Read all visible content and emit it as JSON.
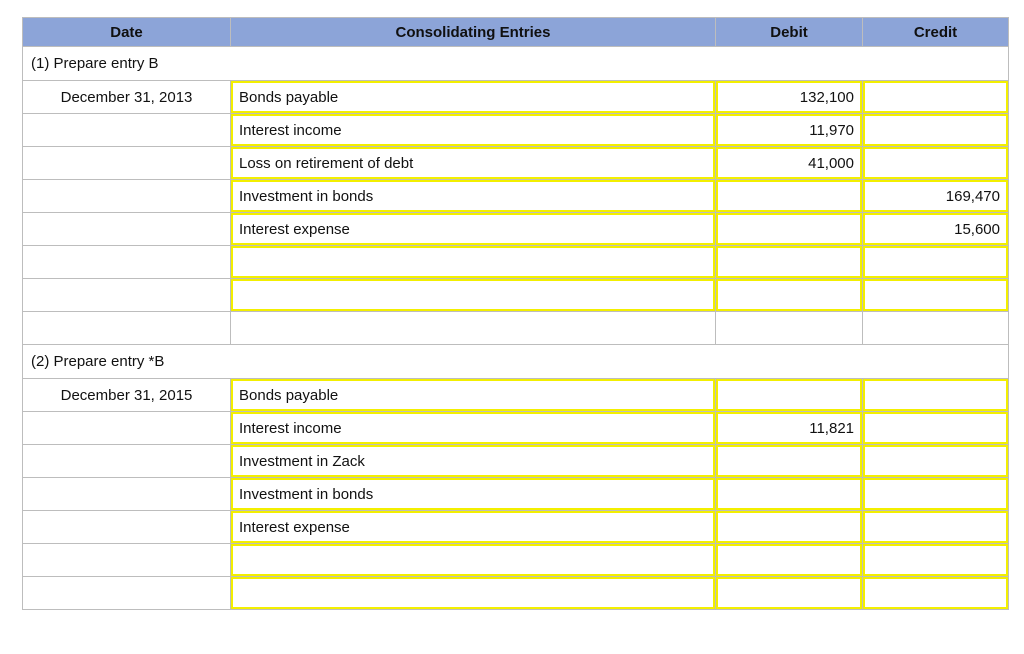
{
  "headers": [
    "Date",
    "Consolidating Entries",
    "Debit",
    "Credit"
  ],
  "sections": [
    {
      "title": "(1) Prepare entry B",
      "rows": [
        {
          "date": "December 31, 2013",
          "entry": "Bonds payable",
          "debit": "132,100",
          "credit": ""
        },
        {
          "date": "",
          "entry": "Interest income",
          "debit": "11,970",
          "credit": ""
        },
        {
          "date": "",
          "entry": "Loss on retirement of debt",
          "debit": "41,000",
          "credit": ""
        },
        {
          "date": "",
          "entry": "Investment in bonds",
          "debit": "",
          "credit": "169,470"
        },
        {
          "date": "",
          "entry": "Interest expense",
          "debit": "",
          "credit": "15,600"
        },
        {
          "date": "",
          "entry": "",
          "debit": "",
          "credit": ""
        },
        {
          "date": "",
          "entry": "",
          "debit": "",
          "credit": ""
        }
      ]
    },
    {
      "title": "(2) Prepare entry *B",
      "rows": [
        {
          "date": "December 31, 2015",
          "entry": "Bonds payable",
          "debit": "",
          "credit": ""
        },
        {
          "date": "",
          "entry": "Interest income",
          "debit": "11,821",
          "credit": ""
        },
        {
          "date": "",
          "entry": "Investment in Zack",
          "debit": "",
          "credit": ""
        },
        {
          "date": "",
          "entry": "Investment in bonds",
          "debit": "",
          "credit": ""
        },
        {
          "date": "",
          "entry": "Interest expense",
          "debit": "",
          "credit": ""
        },
        {
          "date": "",
          "entry": "",
          "debit": "",
          "credit": ""
        },
        {
          "date": "",
          "entry": "",
          "debit": "",
          "credit": ""
        }
      ]
    }
  ],
  "colors": {
    "header_bg": "#8CA4D8",
    "input_border": "#F3EF00",
    "grid_line": "#BDBDBD",
    "text": "#111111"
  }
}
